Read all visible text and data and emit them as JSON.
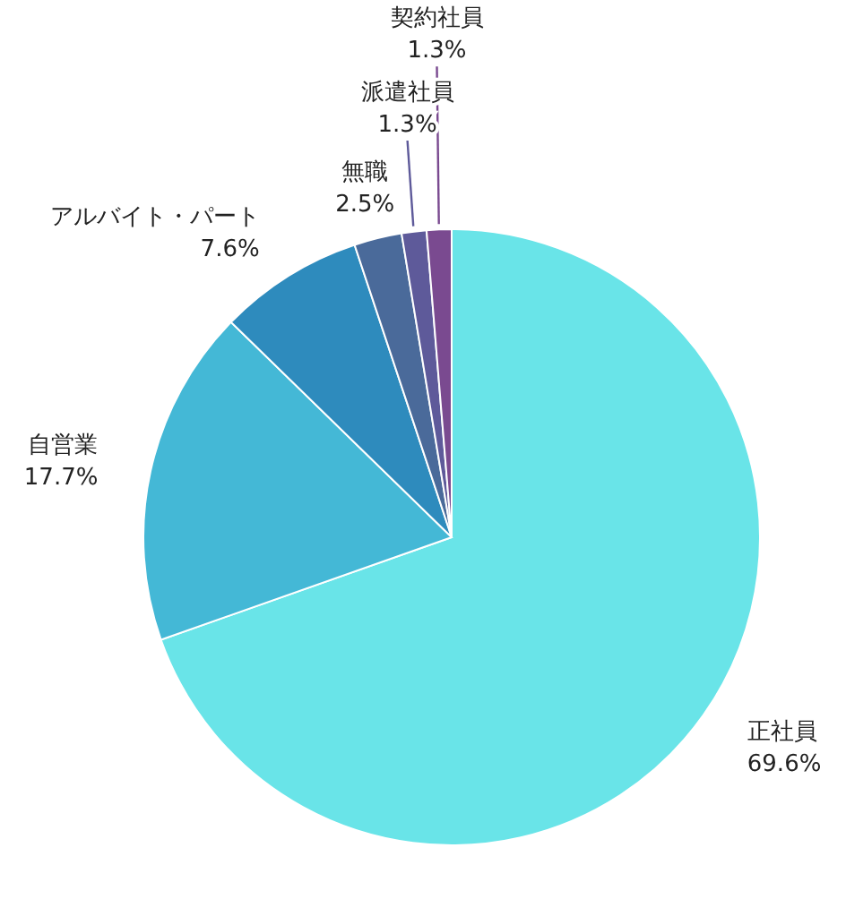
{
  "chart_data": {
    "type": "pie",
    "categories": [
      "正社員",
      "自営業",
      "アルバイト・パート",
      "無職",
      "派遣社員",
      "契約社員"
    ],
    "values": [
      69.6,
      17.7,
      7.6,
      2.5,
      1.3,
      1.3
    ],
    "colors": [
      "#69e4e8",
      "#44b8d6",
      "#2e8bbd",
      "#4a6a9a",
      "#5e5a9a",
      "#7a4a90"
    ],
    "value_labels": [
      "69.6%",
      "17.7%",
      "7.6%",
      "2.5%",
      "1.3%",
      "1.3%"
    ]
  }
}
